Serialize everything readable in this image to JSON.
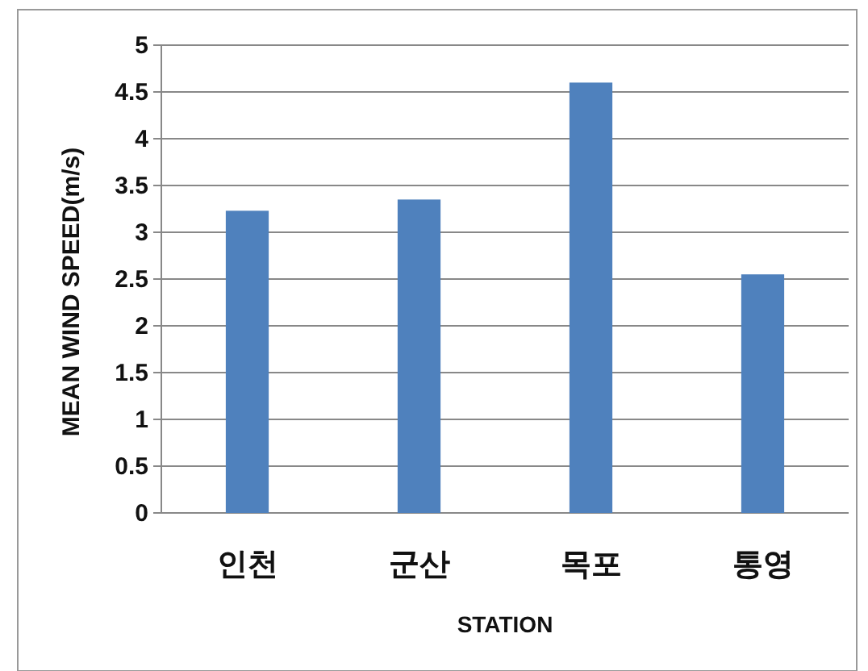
{
  "chart_data": {
    "type": "bar",
    "xlabel": "STATION",
    "ylabel": "MEAN WIND SPEED(m/s)",
    "categories": [
      "인천",
      "군산",
      "목포",
      "통영"
    ],
    "values": [
      3.23,
      3.35,
      4.6,
      2.55
    ],
    "color": "#4f81bd",
    "ylim": [
      0,
      5
    ],
    "yticks": [
      0,
      0.5,
      1,
      1.5,
      2,
      2.5,
      3,
      3.5,
      4,
      4.5,
      5
    ],
    "grid": "y"
  }
}
